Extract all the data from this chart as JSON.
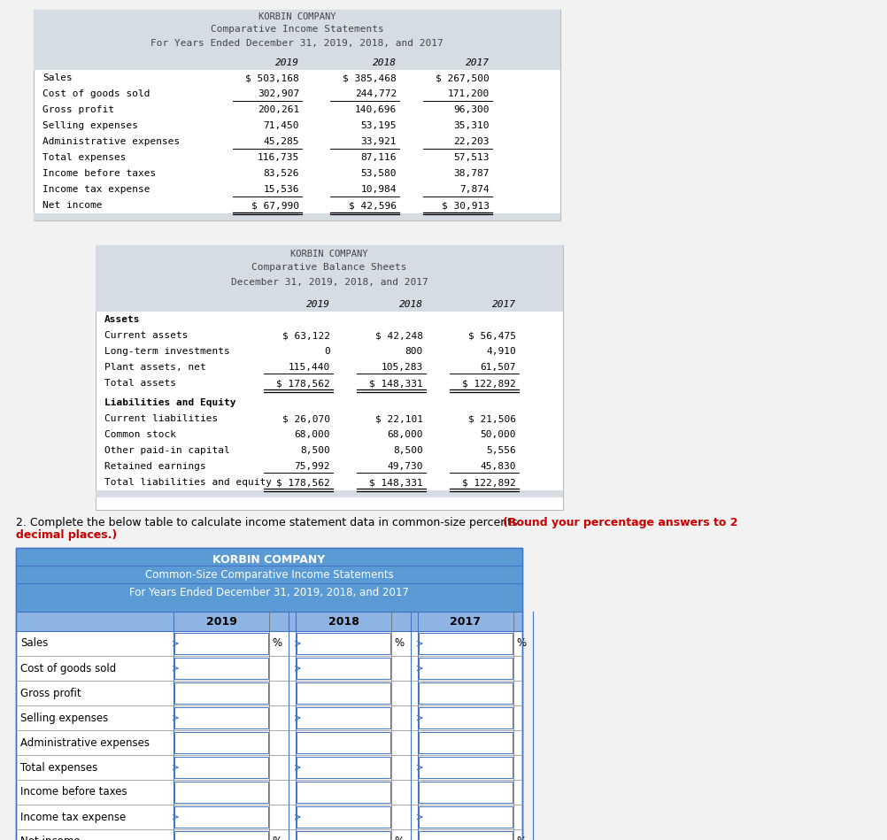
{
  "page_bg": "#f2f2f2",
  "card_bg": "#ffffff",
  "header_bg_t1t2": "#d6dce4",
  "header_bg_t3_title": "#5b9bd5",
  "header_bg_t3_cols": "#8db4e2",
  "t1": {
    "title1": "KORBIN COMPANY",
    "title2": "Comparative Income Statements",
    "title3": "For Years Ended December 31, 2019, 2018, and 2017",
    "col_headers": [
      "2019",
      "2018",
      "2017"
    ],
    "rows": [
      [
        "Sales",
        "$ 503,168",
        "$ 385,468",
        "$ 267,500"
      ],
      [
        "Cost of goods sold",
        "302,907",
        "244,772",
        "171,200"
      ],
      [
        "Gross profit",
        "200,261",
        "140,696",
        "96,300"
      ],
      [
        "Selling expenses",
        "71,450",
        "53,195",
        "35,310"
      ],
      [
        "Administrative expenses",
        "45,285",
        "33,921",
        "22,203"
      ],
      [
        "Total expenses",
        "116,735",
        "87,116",
        "57,513"
      ],
      [
        "Income before taxes",
        "83,526",
        "53,580",
        "38,787"
      ],
      [
        "Income tax expense",
        "15,536",
        "10,984",
        "7,874"
      ],
      [
        "Net income",
        "$ 67,990",
        "$ 42,596",
        "$ 30,913"
      ]
    ],
    "single_ul_after": [
      1,
      4,
      7
    ],
    "double_ul_after": [
      8
    ]
  },
  "t2": {
    "title1": "KORBIN COMPANY",
    "title2": "Comparative Balance Sheets",
    "title3": "December 31, 2019, 2018, and 2017",
    "col_headers": [
      "2019",
      "2018",
      "2017"
    ],
    "section1_header": "Assets",
    "section1_rows": [
      [
        "Current assets",
        "$ 63,122",
        "$ 42,248",
        "$ 56,475"
      ],
      [
        "Long-term investments",
        "0",
        "800",
        "4,910"
      ],
      [
        "Plant assets, net",
        "115,440",
        "105,283",
        "61,507"
      ]
    ],
    "section1_total": [
      "Total assets",
      "$ 178,562",
      "$ 148,331",
      "$ 122,892"
    ],
    "section2_header": "Liabilities and Equity",
    "section2_rows": [
      [
        "Current liabilities",
        "$ 26,070",
        "$ 22,101",
        "$ 21,506"
      ],
      [
        "Common stock",
        "68,000",
        "68,000",
        "50,000"
      ],
      [
        "Other paid-in capital",
        "8,500",
        "8,500",
        "5,556"
      ],
      [
        "Retained earnings",
        "75,992",
        "49,730",
        "45,830"
      ]
    ],
    "section2_total": [
      "Total liabilities and equity",
      "$ 178,562",
      "$ 148,331",
      "$ 122,892"
    ]
  },
  "instr_normal": "2. Complete the below table to calculate income statement data in common-size percents. ",
  "instr_bold": "(Round your percentage answers to 2 decimal places.)",
  "t3": {
    "title1": "KORBIN COMPANY",
    "title2": "Common-Size Comparative Income Statements",
    "title3": "For Years Ended December 31, 2019, 2018, and 2017",
    "col_headers": [
      "2019",
      "2018",
      "2017"
    ],
    "rows": [
      "Sales",
      "Cost of goods sold",
      "Gross profit",
      "Selling expenses",
      "Administrative expenses",
      "Total expenses",
      "Income before taxes",
      "Income tax expense",
      "Net income"
    ],
    "pct_rows": [
      0,
      8
    ],
    "has_top_border_rows": [
      0,
      3,
      5,
      7,
      8
    ],
    "thick_border_rows": [
      4
    ]
  }
}
